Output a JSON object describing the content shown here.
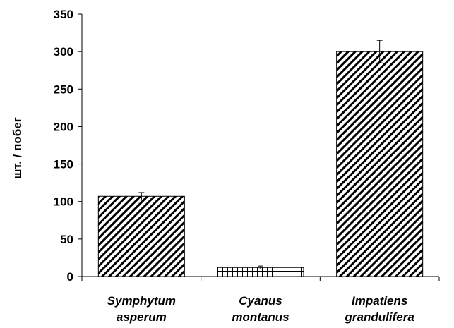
{
  "chart_data": {
    "type": "bar",
    "title": "",
    "xlabel": "",
    "ylabel": "шт. / побег",
    "ylim": [
      0,
      350
    ],
    "yticks": [
      0,
      50,
      100,
      150,
      200,
      250,
      300,
      350
    ],
    "grid": false,
    "legend": "none",
    "categories": [
      [
        "Symphytum",
        "asperum"
      ],
      [
        "Cyanus",
        "montanus"
      ],
      [
        "Impatiens",
        "grandulifera"
      ]
    ],
    "values": [
      107,
      12,
      300
    ],
    "errors": [
      5,
      2,
      15
    ],
    "patterns": [
      "diagonal-hatch",
      "vertical-hatch",
      "diagonal-hatch"
    ]
  }
}
